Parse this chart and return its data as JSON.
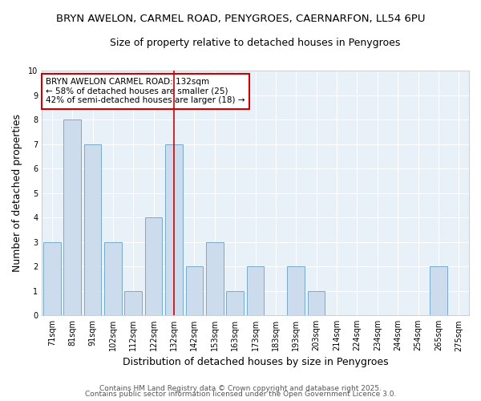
{
  "title_line1": "BRYN AWELON, CARMEL ROAD, PENYGROES, CAERNARFON, LL54 6PU",
  "title_line2": "Size of property relative to detached houses in Penygroes",
  "xlabel": "Distribution of detached houses by size in Penygroes",
  "ylabel": "Number of detached properties",
  "categories": [
    "71sqm",
    "81sqm",
    "91sqm",
    "102sqm",
    "112sqm",
    "122sqm",
    "132sqm",
    "142sqm",
    "153sqm",
    "163sqm",
    "173sqm",
    "183sqm",
    "193sqm",
    "203sqm",
    "214sqm",
    "224sqm",
    "234sqm",
    "244sqm",
    "254sqm",
    "265sqm",
    "275sqm"
  ],
  "values": [
    3,
    8,
    7,
    3,
    1,
    4,
    7,
    2,
    3,
    1,
    2,
    0,
    2,
    1,
    0,
    0,
    0,
    0,
    0,
    2,
    0
  ],
  "subject_bar_index": 6,
  "bar_color": "#ccdcec",
  "bar_edge_color": "#7aaac8",
  "subject_line_color": "#cc0000",
  "ylim": [
    0,
    10
  ],
  "yticks": [
    0,
    1,
    2,
    3,
    4,
    5,
    6,
    7,
    8,
    9,
    10
  ],
  "annotation_lines": [
    "BRYN AWELON CARMEL ROAD: 132sqm",
    "← 58% of detached houses are smaller (25)",
    "42% of semi-detached houses are larger (18) →"
  ],
  "footer_line1": "Contains HM Land Registry data © Crown copyright and database right 2025.",
  "footer_line2": "Contains public sector information licensed under the Open Government Licence 3.0.",
  "plot_bg_color": "#e8f0f8",
  "fig_bg_color": "#ffffff",
  "grid_color": "#ffffff",
  "title_fontsize": 9.5,
  "subtitle_fontsize": 9,
  "axis_label_fontsize": 9,
  "tick_fontsize": 7,
  "footer_fontsize": 6.5,
  "annot_fontsize": 7.5
}
